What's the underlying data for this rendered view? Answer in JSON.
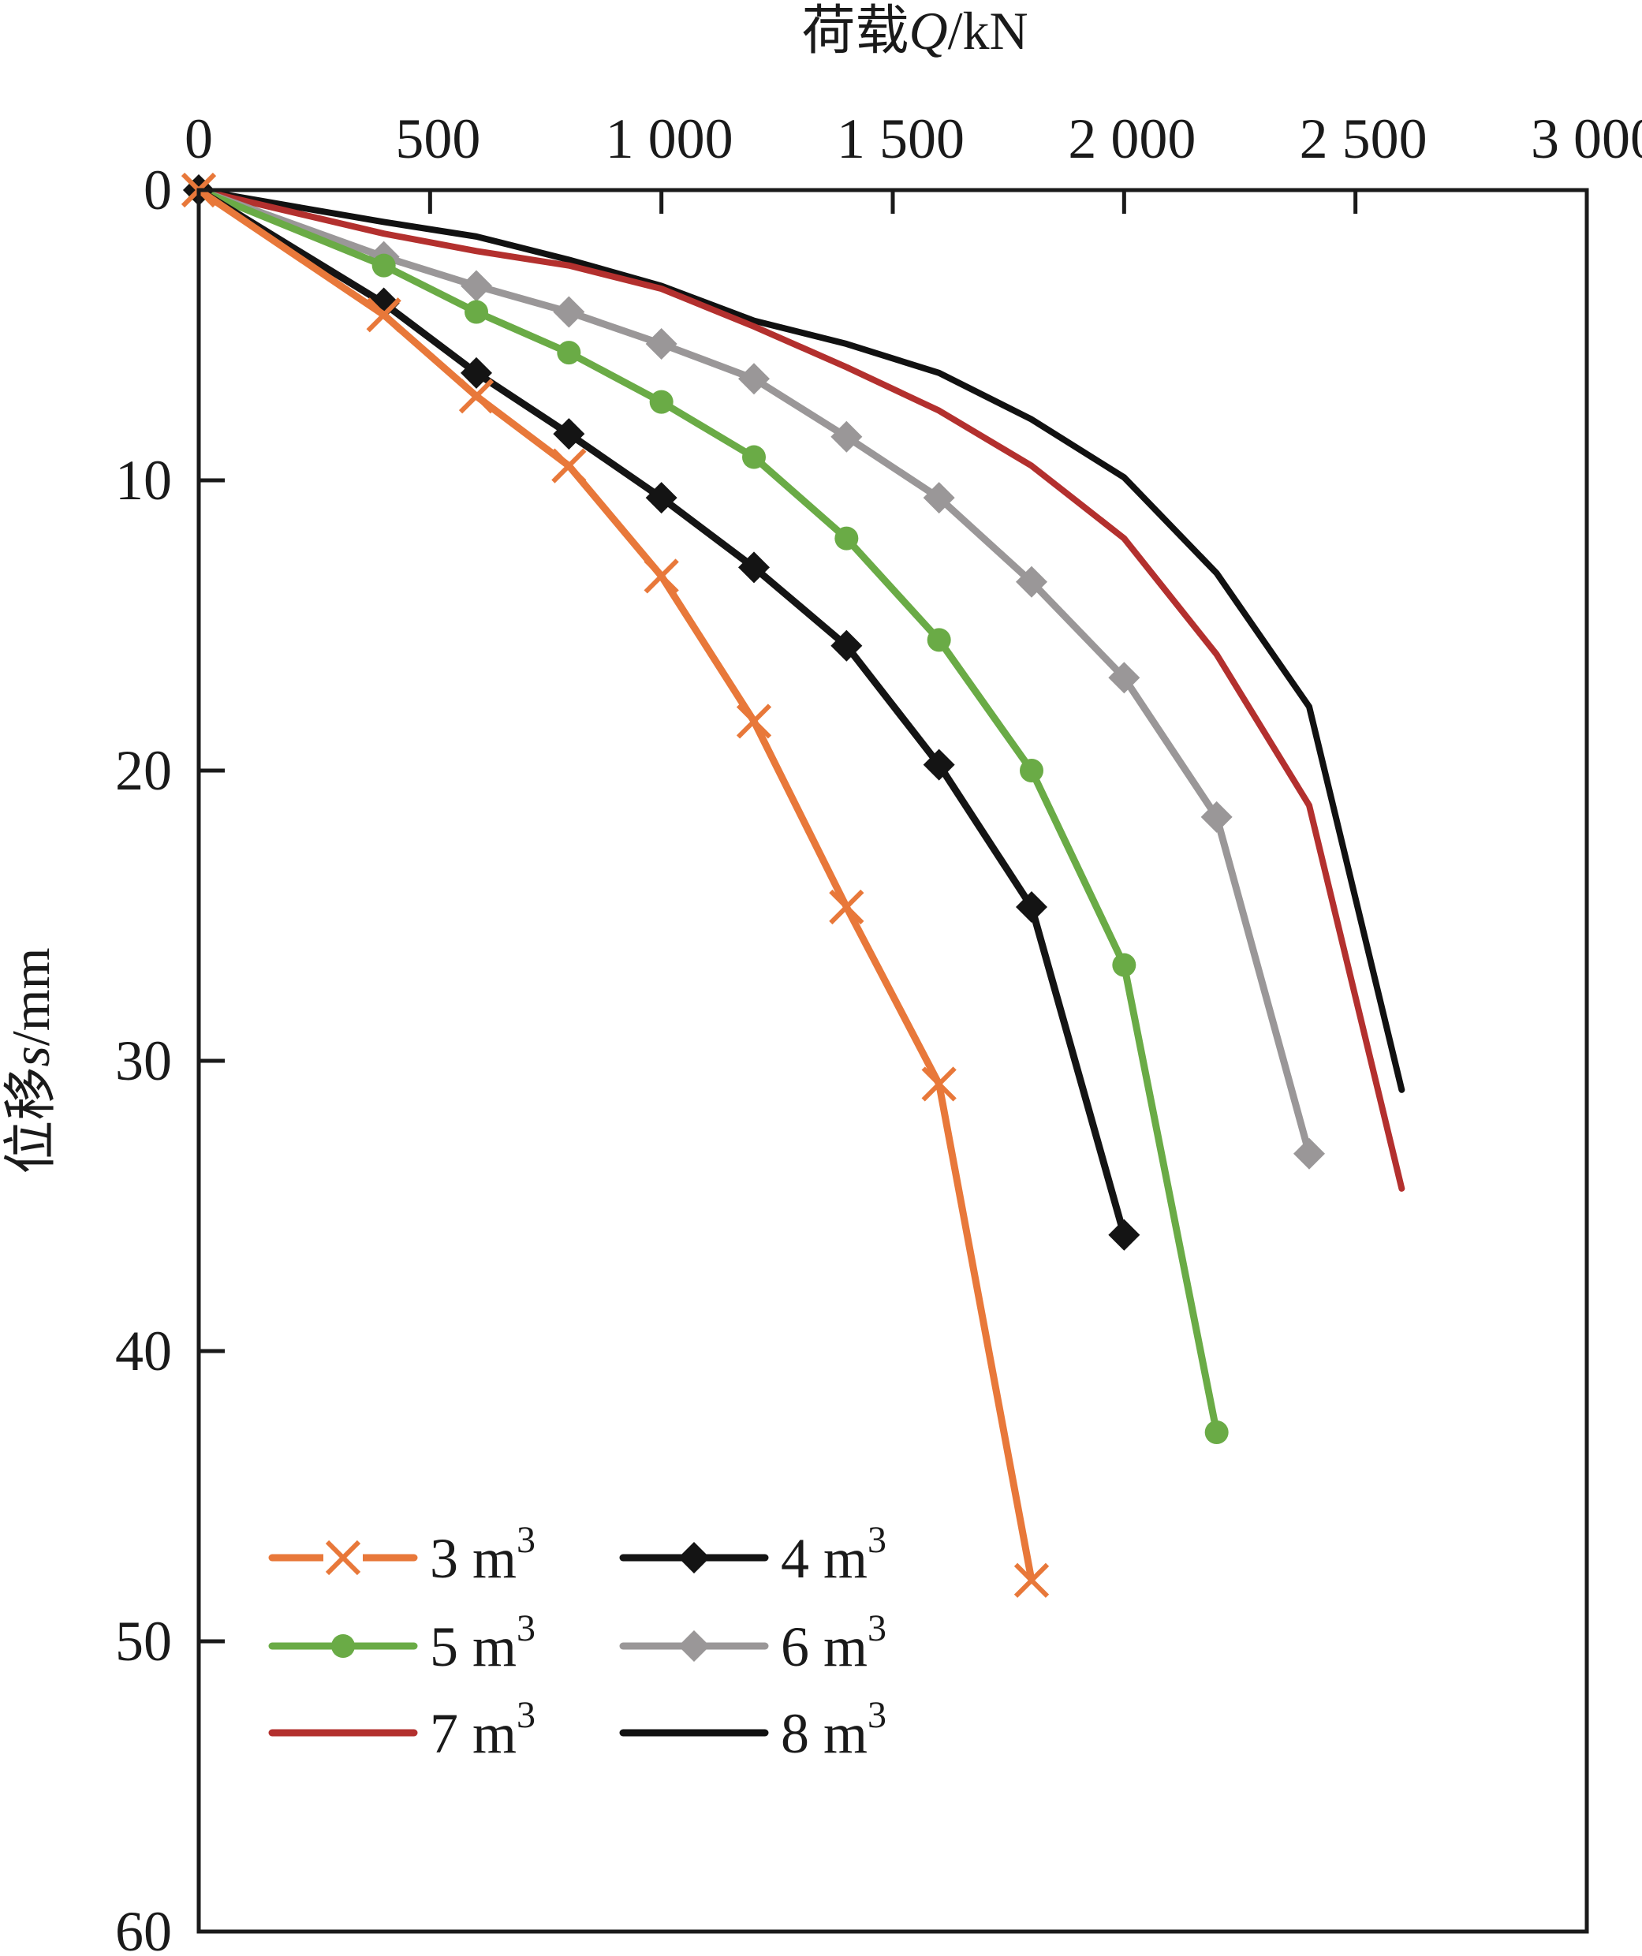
{
  "chart_data": {
    "type": "line",
    "title": "",
    "xlabel": "荷载Q/kN",
    "xlabel_prefix": "荷载",
    "xlabel_var": "Q",
    "xlabel_unit": "/kN",
    "ylabel": "位移s/mm",
    "ylabel_prefix": "位移",
    "ylabel_var": "s",
    "ylabel_unit": "/mm",
    "xlim": [
      0,
      3000
    ],
    "ylim": [
      0,
      60
    ],
    "y_inverted": true,
    "x_axis_position": "top",
    "grid": false,
    "legend_position": "bottom-left",
    "x_ticks": [
      0,
      500,
      1000,
      1500,
      2000,
      2500,
      3000
    ],
    "x_tick_labels": [
      "0",
      "500",
      "1 000",
      "1 500",
      "2 000",
      "2 500",
      "3 000"
    ],
    "y_ticks": [
      0,
      10,
      20,
      30,
      40,
      50,
      60
    ],
    "y_tick_labels": [
      "0",
      "10",
      "20",
      "30",
      "40",
      "50",
      "60"
    ],
    "series": [
      {
        "name": "3 m3",
        "label_base": "3 m",
        "label_sup": "3",
        "color": "#e8783a",
        "marker": "x",
        "x": [
          0,
          400,
          600,
          800,
          1000,
          1200,
          1400,
          1600,
          1800
        ],
        "y": [
          0,
          4.3,
          7.1,
          9.5,
          13.3,
          18.3,
          24.7,
          30.8,
          47.9
        ]
      },
      {
        "name": "4 m3",
        "label_base": "4 m",
        "label_sup": "3",
        "color": "#141414",
        "marker": "diamond",
        "x": [
          0,
          400,
          600,
          800,
          1000,
          1200,
          1400,
          1600,
          1800,
          2000
        ],
        "y": [
          0,
          3.9,
          6.3,
          8.4,
          10.6,
          13.0,
          15.7,
          19.8,
          24.7,
          36.0
        ]
      },
      {
        "name": "5 m3",
        "label_base": "5 m",
        "label_sup": "3",
        "color": "#6aab46",
        "marker": "circle",
        "x": [
          0,
          400,
          600,
          800,
          1000,
          1200,
          1400,
          1600,
          1800,
          2000,
          2200
        ],
        "y": [
          0,
          2.6,
          4.2,
          5.6,
          7.3,
          9.2,
          12.0,
          15.5,
          20.0,
          26.7,
          42.8
        ]
      },
      {
        "name": "6 m3",
        "label_base": "6 m",
        "label_sup": "3",
        "color": "#9a9798",
        "marker": "diamond",
        "x": [
          0,
          400,
          600,
          800,
          1000,
          1200,
          1400,
          1600,
          1800,
          2000,
          2200,
          2400
        ],
        "y": [
          0,
          2.3,
          3.3,
          4.2,
          5.3,
          6.5,
          8.5,
          10.6,
          13.5,
          16.8,
          21.6,
          33.2
        ]
      },
      {
        "name": "7 m3",
        "label_base": "7 m",
        "label_sup": "3",
        "color": "#b3302e",
        "marker": "none",
        "x": [
          0,
          400,
          600,
          800,
          1000,
          1200,
          1400,
          1600,
          1800,
          2000,
          2200,
          2400,
          2600
        ],
        "y": [
          0,
          1.5,
          2.1,
          2.6,
          3.4,
          4.7,
          6.1,
          7.6,
          9.5,
          12.0,
          16.0,
          21.2,
          34.4
        ]
      },
      {
        "name": "8 m3",
        "label_base": "8 m",
        "label_sup": "3",
        "color": "#111111",
        "marker": "none",
        "x": [
          0,
          400,
          600,
          800,
          1000,
          1200,
          1400,
          1600,
          1800,
          2000,
          2200,
          2400,
          2600
        ],
        "y": [
          0,
          1.1,
          1.6,
          2.4,
          3.3,
          4.5,
          5.3,
          6.3,
          7.9,
          9.9,
          13.2,
          17.8,
          31.0
        ]
      }
    ]
  }
}
